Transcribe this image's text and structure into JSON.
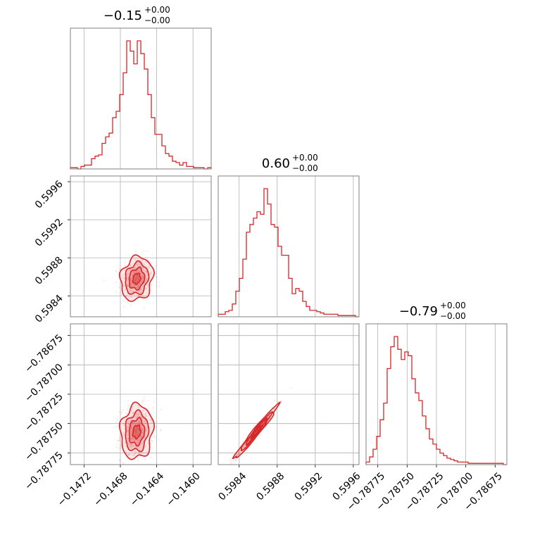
{
  "chart_data": {
    "type": "corner",
    "colors": {
      "series": "#d62728",
      "grid": "#b0b0b0",
      "frame": "#808080"
    },
    "grid": true,
    "parameters": [
      {
        "title": {
          "value": "−0.15",
          "upper": "+0.00",
          "lower": "−0.00"
        },
        "range": [
          -0.14735,
          -0.1458
        ],
        "ticks": [
          {
            "value": -0.1472,
            "label": "−0.1472"
          },
          {
            "value": -0.1468,
            "label": "−0.1468"
          },
          {
            "value": -0.1464,
            "label": "−0.1464"
          },
          {
            "value": -0.146,
            "label": "−0.1460"
          }
        ],
        "mean": -0.14662,
        "std": 8.5e-05,
        "histogram": [
          0.01,
          0.01,
          0.0,
          0.02,
          0.03,
          0.03,
          0.08,
          0.1,
          0.11,
          0.2,
          0.25,
          0.28,
          0.4,
          0.45,
          0.58,
          0.75,
          1.0,
          0.92,
          0.82,
          1.0,
          0.9,
          0.78,
          0.58,
          0.4,
          0.27,
          0.27,
          0.18,
          0.12,
          0.1,
          0.06,
          0.05,
          0.03,
          0.05,
          0.02,
          0.02,
          0.01,
          0.01,
          0.01,
          0.0,
          0.01
        ]
      },
      {
        "title": {
          "value": "0.60",
          "upper": "+0.00",
          "lower": "−0.00"
        },
        "range": [
          0.59818,
          0.59966
        ],
        "ticks": [
          {
            "value": 0.5984,
            "label": "0.5984"
          },
          {
            "value": 0.5988,
            "label": "0.5988"
          },
          {
            "value": 0.5992,
            "label": "0.5992"
          },
          {
            "value": 0.5996,
            "label": "0.5996"
          }
        ],
        "mean": 0.59858,
        "std": 0.00011,
        "histogram": [
          0.02,
          0.02,
          0.04,
          0.05,
          0.1,
          0.2,
          0.3,
          0.45,
          0.66,
          0.72,
          0.77,
          0.82,
          0.8,
          1.0,
          0.88,
          0.72,
          0.7,
          0.55,
          0.48,
          0.48,
          0.3,
          0.18,
          0.22,
          0.2,
          0.12,
          0.08,
          0.05,
          0.05,
          0.04,
          0.03,
          0.02,
          0.02,
          0.02,
          0.02,
          0.01,
          0.01,
          0.01,
          0.01,
          0.01,
          0.0
        ]
      },
      {
        "title": {
          "value": "−0.79",
          "upper": "+0.00",
          "lower": "−0.00"
        },
        "range": [
          -0.78785,
          -0.78665
        ],
        "ticks": [
          {
            "value": -0.78775,
            "label": "−0.78775"
          },
          {
            "value": -0.7875,
            "label": "−0.78750"
          },
          {
            "value": -0.78725,
            "label": "−0.78725"
          },
          {
            "value": -0.787,
            "label": "−0.78700"
          },
          {
            "value": -0.78675,
            "label": "−0.78675"
          }
        ],
        "mean": -0.78757,
        "std": 0.00011,
        "histogram": [
          0.02,
          0.06,
          0.12,
          0.22,
          0.35,
          0.48,
          0.75,
          0.92,
          1.0,
          0.9,
          0.82,
          0.88,
          0.85,
          0.67,
          0.56,
          0.5,
          0.38,
          0.28,
          0.2,
          0.16,
          0.12,
          0.09,
          0.07,
          0.05,
          0.04,
          0.03,
          0.02,
          0.02,
          0.02,
          0.01,
          0.01,
          0.01,
          0.01,
          0.01,
          0.01,
          0.01,
          0.01,
          0.01,
          0.01,
          0.0
        ]
      }
    ],
    "correlations": {
      "1-0": 0.15,
      "2-0": 0.1,
      "2-1": 0.98
    }
  }
}
